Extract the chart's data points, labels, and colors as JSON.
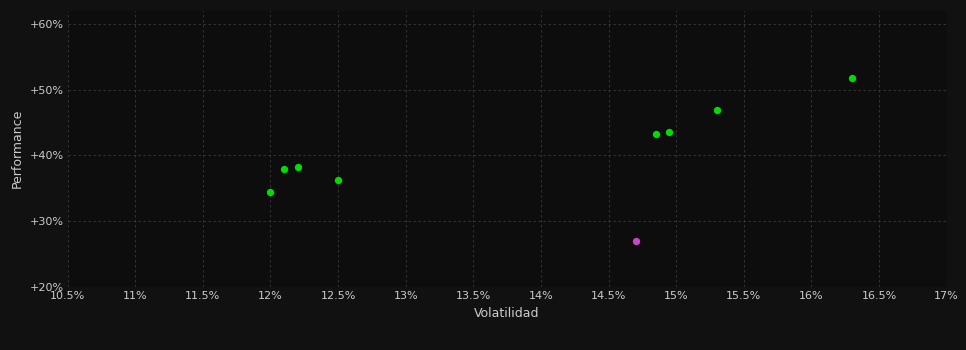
{
  "background_color": "#111111",
  "plot_bg_color": "#0d0d0d",
  "grid_color": "#444444",
  "text_color": "#cccccc",
  "xlabel": "Volatilidad",
  "ylabel": "Performance",
  "xlim": [
    0.105,
    0.17
  ],
  "ylim": [
    0.2,
    0.62
  ],
  "xticks": [
    0.105,
    0.11,
    0.115,
    0.12,
    0.125,
    0.13,
    0.135,
    0.14,
    0.145,
    0.15,
    0.155,
    0.16,
    0.165,
    0.17
  ],
  "yticks": [
    0.2,
    0.3,
    0.4,
    0.5,
    0.6
  ],
  "ytick_labels": [
    "+20%",
    "+30%",
    "+40%",
    "+50%",
    "+60%"
  ],
  "xtick_labels": [
    "10.5%",
    "11%",
    "11.5%",
    "12%",
    "12.5%",
    "13%",
    "13.5%",
    "14%",
    "14.5%",
    "15%",
    "15.5%",
    "16%",
    "16.5%",
    "17%"
  ],
  "green_points": [
    [
      0.12,
      0.345
    ],
    [
      0.121,
      0.38
    ],
    [
      0.122,
      0.383
    ],
    [
      0.125,
      0.363
    ],
    [
      0.1485,
      0.432
    ],
    [
      0.1495,
      0.436
    ],
    [
      0.153,
      0.469
    ],
    [
      0.163,
      0.518
    ]
  ],
  "magenta_points": [
    [
      0.147,
      0.27
    ]
  ],
  "green_color": "#00dd00",
  "magenta_color": "#cc44cc",
  "marker_size": 28,
  "font_size_ticks": 8,
  "font_size_label": 9
}
